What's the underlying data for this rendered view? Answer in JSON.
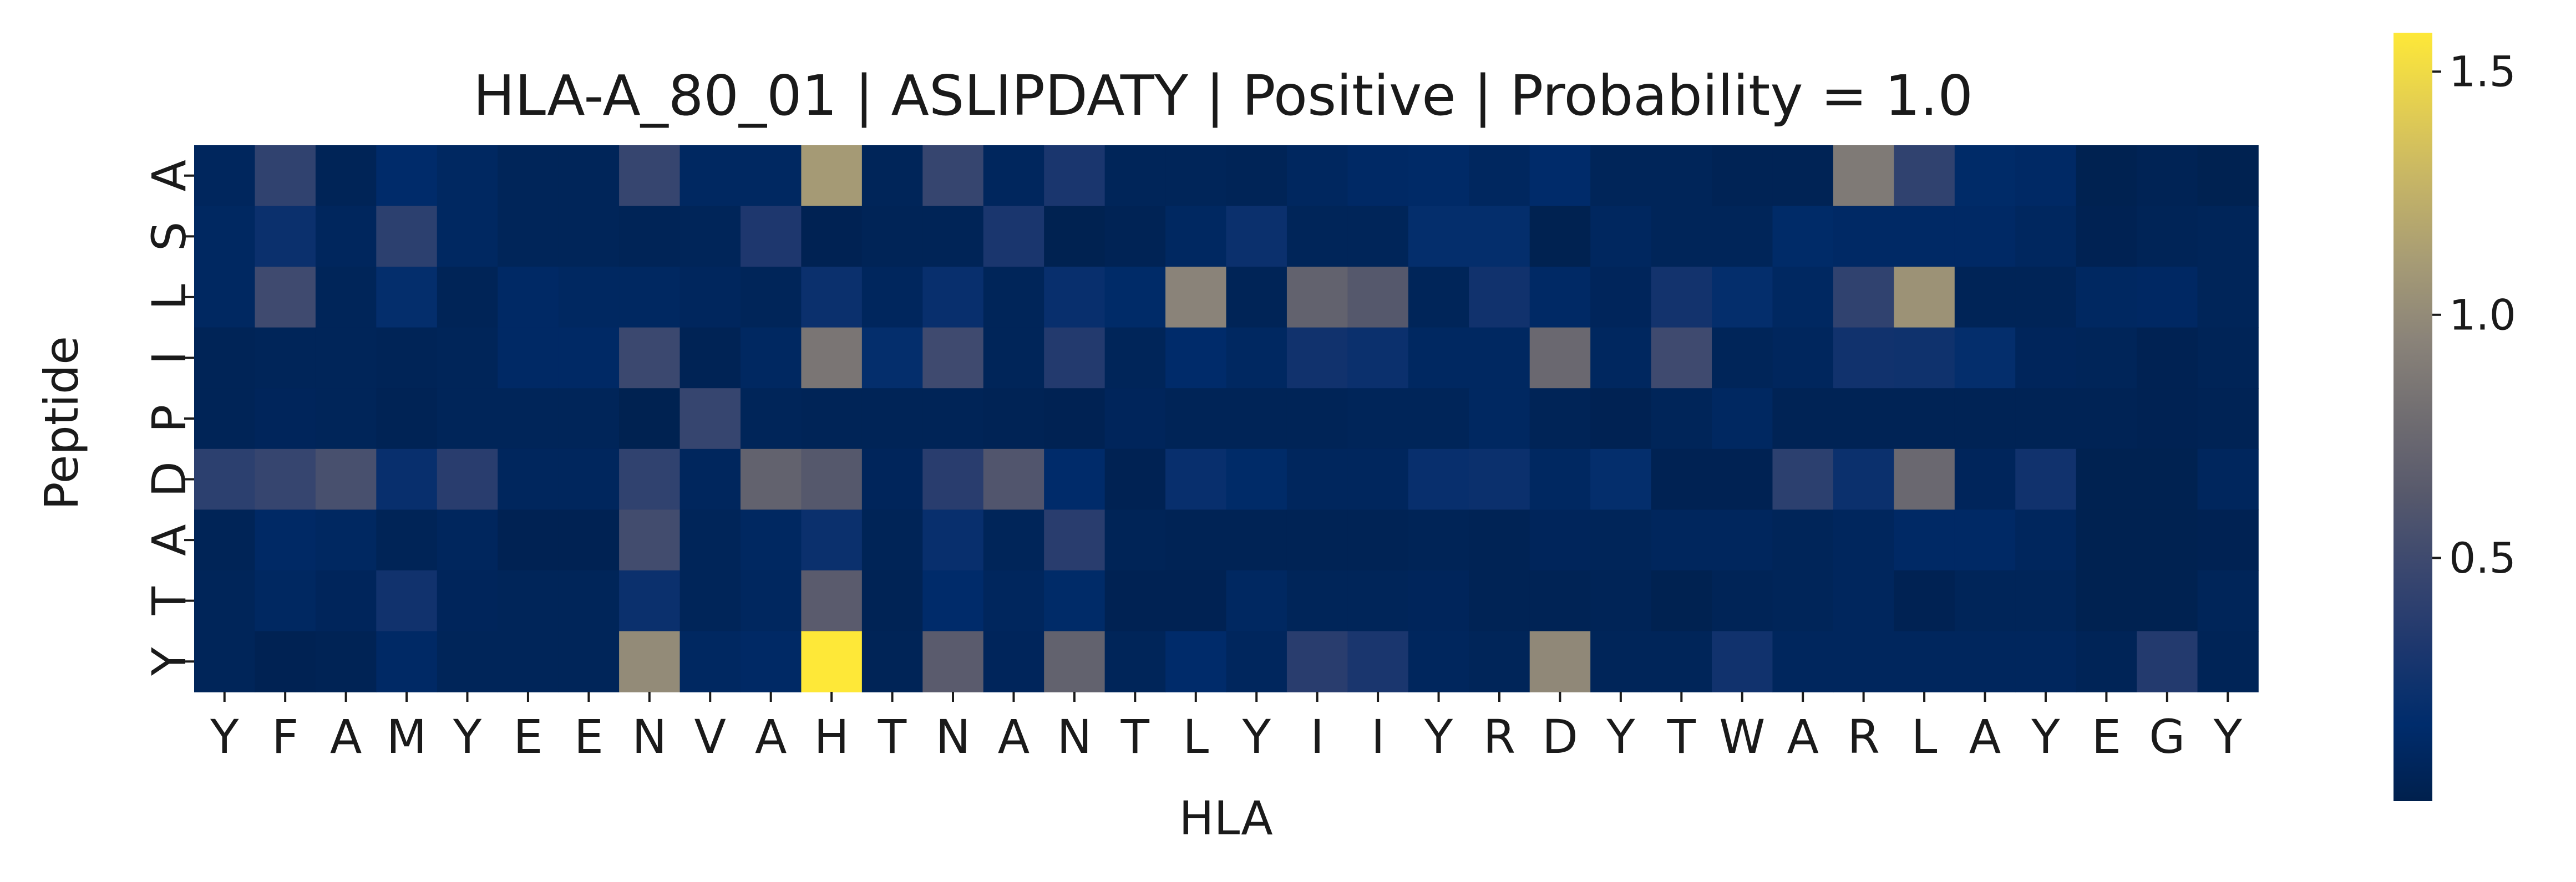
{
  "chart_data": {
    "type": "heatmap",
    "title": "HLA-A_80_01 | ASLIPDATY | Positive | Probability = 1.0",
    "xlabel": "HLA",
    "ylabel": "Peptide",
    "x_categories": [
      "Y",
      "F",
      "A",
      "M",
      "Y",
      "E",
      "E",
      "N",
      "V",
      "A",
      "H",
      "T",
      "N",
      "A",
      "N",
      "T",
      "L",
      "Y",
      "I",
      "I",
      "Y",
      "R",
      "D",
      "Y",
      "T",
      "W",
      "A",
      "R",
      "L",
      "A",
      "Y",
      "E",
      "G",
      "Y"
    ],
    "y_categories": [
      "A",
      "S",
      "L",
      "I",
      "P",
      "D",
      "A",
      "T",
      "Y"
    ],
    "values": [
      [
        0.08,
        0.42,
        0.05,
        0.15,
        0.1,
        0.06,
        0.06,
        0.45,
        0.1,
        0.1,
        1.1,
        0.06,
        0.45,
        0.08,
        0.3,
        0.06,
        0.06,
        0.05,
        0.09,
        0.12,
        0.13,
        0.09,
        0.15,
        0.06,
        0.06,
        0.04,
        0.04,
        0.88,
        0.42,
        0.14,
        0.12,
        0.02,
        0.04,
        0.02
      ],
      [
        0.1,
        0.22,
        0.08,
        0.4,
        0.1,
        0.06,
        0.06,
        0.05,
        0.06,
        0.32,
        0.03,
        0.05,
        0.05,
        0.3,
        0.02,
        0.04,
        0.1,
        0.22,
        0.06,
        0.06,
        0.18,
        0.18,
        0.02,
        0.09,
        0.06,
        0.06,
        0.14,
        0.12,
        0.12,
        0.12,
        0.09,
        0.03,
        0.05,
        0.06
      ],
      [
        0.1,
        0.5,
        0.06,
        0.18,
        0.05,
        0.12,
        0.1,
        0.1,
        0.08,
        0.06,
        0.22,
        0.08,
        0.2,
        0.06,
        0.2,
        0.14,
        0.95,
        0.05,
        0.7,
        0.62,
        0.06,
        0.25,
        0.12,
        0.07,
        0.26,
        0.18,
        0.1,
        0.42,
        1.05,
        0.05,
        0.05,
        0.1,
        0.11,
        0.06
      ],
      [
        0.05,
        0.06,
        0.06,
        0.05,
        0.06,
        0.12,
        0.12,
        0.48,
        0.04,
        0.1,
        0.85,
        0.18,
        0.5,
        0.06,
        0.35,
        0.06,
        0.15,
        0.1,
        0.25,
        0.22,
        0.1,
        0.1,
        0.75,
        0.09,
        0.5,
        0.06,
        0.08,
        0.25,
        0.24,
        0.18,
        0.07,
        0.06,
        0.03,
        0.05
      ],
      [
        0.05,
        0.07,
        0.06,
        0.04,
        0.06,
        0.06,
        0.06,
        0.02,
        0.45,
        0.06,
        0.05,
        0.05,
        0.05,
        0.04,
        0.03,
        0.07,
        0.05,
        0.05,
        0.05,
        0.06,
        0.06,
        0.1,
        0.05,
        0.03,
        0.06,
        0.1,
        0.04,
        0.04,
        0.04,
        0.04,
        0.04,
        0.04,
        0.03,
        0.04
      ],
      [
        0.4,
        0.45,
        0.55,
        0.2,
        0.38,
        0.08,
        0.08,
        0.42,
        0.08,
        0.7,
        0.62,
        0.07,
        0.38,
        0.6,
        0.15,
        0.03,
        0.2,
        0.14,
        0.08,
        0.08,
        0.2,
        0.22,
        0.1,
        0.18,
        0.03,
        0.03,
        0.4,
        0.22,
        0.75,
        0.07,
        0.25,
        0.02,
        0.02,
        0.08
      ],
      [
        0.05,
        0.12,
        0.1,
        0.05,
        0.08,
        0.03,
        0.03,
        0.52,
        0.06,
        0.1,
        0.22,
        0.05,
        0.2,
        0.06,
        0.38,
        0.05,
        0.04,
        0.04,
        0.04,
        0.04,
        0.05,
        0.04,
        0.07,
        0.06,
        0.08,
        0.08,
        0.06,
        0.08,
        0.12,
        0.12,
        0.08,
        0.02,
        0.02,
        0.03
      ],
      [
        0.06,
        0.1,
        0.07,
        0.25,
        0.07,
        0.06,
        0.06,
        0.22,
        0.06,
        0.09,
        0.65,
        0.04,
        0.15,
        0.08,
        0.14,
        0.03,
        0.03,
        0.1,
        0.06,
        0.06,
        0.07,
        0.04,
        0.04,
        0.05,
        0.02,
        0.05,
        0.06,
        0.08,
        0.03,
        0.06,
        0.06,
        0.02,
        0.02,
        0.06
      ],
      [
        0.06,
        0.03,
        0.04,
        0.12,
        0.06,
        0.06,
        0.06,
        1.0,
        0.1,
        0.12,
        1.58,
        0.05,
        0.65,
        0.07,
        0.7,
        0.06,
        0.15,
        0.08,
        0.38,
        0.3,
        0.08,
        0.06,
        0.98,
        0.06,
        0.06,
        0.25,
        0.08,
        0.08,
        0.08,
        0.08,
        0.08,
        0.05,
        0.35,
        0.05
      ]
    ],
    "vmin": 0.0,
    "vmax": 1.58,
    "colormap": "cividis",
    "colorbar_ticks": [
      0.5,
      1.0,
      1.5
    ],
    "colorbar_tick_labels": [
      "0.5",
      "1.0",
      "1.5"
    ],
    "grid": false
  }
}
